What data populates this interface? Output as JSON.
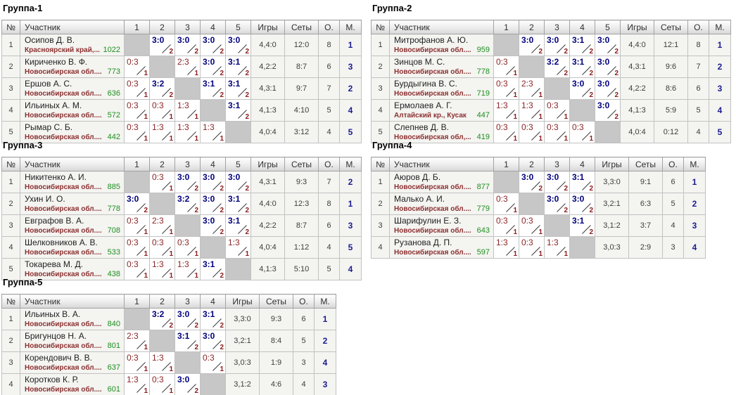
{
  "headers": {
    "num": "№",
    "participant": "Участник",
    "games": "Игры",
    "sets": "Сеты",
    "points": "О.",
    "place": "М."
  },
  "colors": {
    "win_score": "#00007d",
    "loss_score": "#8b2525",
    "bonus_points": "#8b1a1a",
    "rating": "#1f8f1f",
    "region": "#8b3030",
    "place": "#1c1c91",
    "diagonal_cell": "#c7c7c7",
    "row_cell_bg": "#f4f4f1"
  },
  "groups": [
    {
      "title": "Группа-1",
      "opponents": [
        "1",
        "2",
        "3",
        "4",
        "5"
      ],
      "players": [
        {
          "num": "1",
          "name": "Осипов Д. В.",
          "region": "Красноярский край,...",
          "rating": "1022",
          "results": [
            {
              "type": "self"
            },
            {
              "type": "win",
              "score": "3:0",
              "pts": "2"
            },
            {
              "type": "win",
              "score": "3:0",
              "pts": "2"
            },
            {
              "type": "win",
              "score": "3:0",
              "pts": "2"
            },
            {
              "type": "win",
              "score": "3:0",
              "pts": "2"
            }
          ],
          "games": "4,4:0",
          "sets": "12:0",
          "points": "8",
          "place": "1"
        },
        {
          "num": "2",
          "name": "Кириченко В. Ф.",
          "region": "Новосибирская обл....",
          "rating": "773",
          "results": [
            {
              "type": "loss",
              "score": "0:3",
              "pts": "1"
            },
            {
              "type": "self"
            },
            {
              "type": "loss",
              "score": "2:3",
              "pts": "1"
            },
            {
              "type": "win",
              "score": "3:0",
              "pts": "2"
            },
            {
              "type": "win",
              "score": "3:1",
              "pts": "2"
            }
          ],
          "games": "4,2:2",
          "sets": "8:7",
          "points": "6",
          "place": "3"
        },
        {
          "num": "3",
          "name": "Ершов А. С.",
          "region": "Новосибирская обл....",
          "rating": "636",
          "results": [
            {
              "type": "loss",
              "score": "0:3",
              "pts": "1"
            },
            {
              "type": "win",
              "score": "3:2",
              "pts": "2"
            },
            {
              "type": "self"
            },
            {
              "type": "win",
              "score": "3:1",
              "pts": "2"
            },
            {
              "type": "win",
              "score": "3:1",
              "pts": "2"
            }
          ],
          "games": "4,3:1",
          "sets": "9:7",
          "points": "7",
          "place": "2"
        },
        {
          "num": "4",
          "name": "Ильиных А. М.",
          "region": "Новосибирская обл....",
          "rating": "572",
          "results": [
            {
              "type": "loss",
              "score": "0:3",
              "pts": "1"
            },
            {
              "type": "loss",
              "score": "0:3",
              "pts": "1"
            },
            {
              "type": "loss",
              "score": "1:3",
              "pts": "1"
            },
            {
              "type": "self"
            },
            {
              "type": "win",
              "score": "3:1",
              "pts": "2"
            }
          ],
          "games": "4,1:3",
          "sets": "4:10",
          "points": "5",
          "place": "4"
        },
        {
          "num": "5",
          "name": "Рымар С. Б.",
          "region": "Новосибирская обл....",
          "rating": "442",
          "results": [
            {
              "type": "loss",
              "score": "0:3",
              "pts": "1"
            },
            {
              "type": "loss",
              "score": "1:3",
              "pts": "1"
            },
            {
              "type": "loss",
              "score": "1:3",
              "pts": "1"
            },
            {
              "type": "loss",
              "score": "1:3",
              "pts": "1"
            },
            {
              "type": "self"
            }
          ],
          "games": "4,0:4",
          "sets": "3:12",
          "points": "4",
          "place": "5"
        }
      ]
    },
    {
      "title": "Группа-2",
      "opponents": [
        "1",
        "2",
        "3",
        "4",
        "5"
      ],
      "players": [
        {
          "num": "1",
          "name": "Митрофанов А. Ю.",
          "region": "Новосибирская обл....",
          "rating": "959",
          "results": [
            {
              "type": "self"
            },
            {
              "type": "win",
              "score": "3:0",
              "pts": "2"
            },
            {
              "type": "win",
              "score": "3:0",
              "pts": "2"
            },
            {
              "type": "win",
              "score": "3:1",
              "pts": "2"
            },
            {
              "type": "win",
              "score": "3:0",
              "pts": "2"
            }
          ],
          "games": "4,4:0",
          "sets": "12:1",
          "points": "8",
          "place": "1"
        },
        {
          "num": "2",
          "name": "Зинцов М. С.",
          "region": "Новосибирская обл....",
          "rating": "778",
          "results": [
            {
              "type": "loss",
              "score": "0:3",
              "pts": "1"
            },
            {
              "type": "self"
            },
            {
              "type": "win",
              "score": "3:2",
              "pts": "2"
            },
            {
              "type": "win",
              "score": "3:1",
              "pts": "2"
            },
            {
              "type": "win",
              "score": "3:0",
              "pts": "2"
            }
          ],
          "games": "4,3:1",
          "sets": "9:6",
          "points": "7",
          "place": "2"
        },
        {
          "num": "3",
          "name": "Бурдыгина В. С.",
          "region": "Новосибирская обл....",
          "rating": "719",
          "results": [
            {
              "type": "loss",
              "score": "0:3",
              "pts": "1"
            },
            {
              "type": "loss",
              "score": "2:3",
              "pts": "1"
            },
            {
              "type": "self"
            },
            {
              "type": "win",
              "score": "3:0",
              "pts": "2"
            },
            {
              "type": "win",
              "score": "3:0",
              "pts": "2"
            }
          ],
          "games": "4,2:2",
          "sets": "8:6",
          "points": "6",
          "place": "3"
        },
        {
          "num": "4",
          "name": "Ермолаев А. Г.",
          "region": "Алтайский кр., Кусак",
          "rating": "447",
          "results": [
            {
              "type": "loss",
              "score": "1:3",
              "pts": "1"
            },
            {
              "type": "loss",
              "score": "1:3",
              "pts": "1"
            },
            {
              "type": "loss",
              "score": "0:3",
              "pts": "1"
            },
            {
              "type": "self"
            },
            {
              "type": "win",
              "score": "3:0",
              "pts": "2"
            }
          ],
          "games": "4,1:3",
          "sets": "5:9",
          "points": "5",
          "place": "4"
        },
        {
          "num": "5",
          "name": "Слепнев Д. В.",
          "region": "Новосибирская обл,...",
          "rating": "419",
          "results": [
            {
              "type": "loss",
              "score": "0:3",
              "pts": "1"
            },
            {
              "type": "loss",
              "score": "0:3",
              "pts": "1"
            },
            {
              "type": "loss",
              "score": "0:3",
              "pts": "1"
            },
            {
              "type": "loss",
              "score": "0:3",
              "pts": "1"
            },
            {
              "type": "self"
            }
          ],
          "games": "4,0:4",
          "sets": "0:12",
          "points": "4",
          "place": "5"
        }
      ]
    },
    {
      "title": "Группа-3",
      "opponents": [
        "1",
        "2",
        "3",
        "4",
        "5"
      ],
      "players": [
        {
          "num": "1",
          "name": "Никитенко А. И.",
          "region": "Новосибирская обл....",
          "rating": "885",
          "results": [
            {
              "type": "self"
            },
            {
              "type": "loss",
              "score": "0:3",
              "pts": "1"
            },
            {
              "type": "win",
              "score": "3:0",
              "pts": "2"
            },
            {
              "type": "win",
              "score": "3:0",
              "pts": "2"
            },
            {
              "type": "win",
              "score": "3:0",
              "pts": "2"
            }
          ],
          "games": "4,3:1",
          "sets": "9:3",
          "points": "7",
          "place": "2"
        },
        {
          "num": "2",
          "name": "Ухин И. О.",
          "region": "Новосибирская обл....",
          "rating": "778",
          "results": [
            {
              "type": "win",
              "score": "3:0",
              "pts": "2"
            },
            {
              "type": "self"
            },
            {
              "type": "win",
              "score": "3:2",
              "pts": "2"
            },
            {
              "type": "win",
              "score": "3:0",
              "pts": "2"
            },
            {
              "type": "win",
              "score": "3:1",
              "pts": "2"
            }
          ],
          "games": "4,4:0",
          "sets": "12:3",
          "points": "8",
          "place": "1"
        },
        {
          "num": "3",
          "name": "Евграфов В. А.",
          "region": "Новосибирская обл....",
          "rating": "708",
          "results": [
            {
              "type": "loss",
              "score": "0:3",
              "pts": "1"
            },
            {
              "type": "loss",
              "score": "2:3",
              "pts": "1"
            },
            {
              "type": "self"
            },
            {
              "type": "win",
              "score": "3:0",
              "pts": "2"
            },
            {
              "type": "win",
              "score": "3:1",
              "pts": "2"
            }
          ],
          "games": "4,2:2",
          "sets": "8:7",
          "points": "6",
          "place": "3"
        },
        {
          "num": "4",
          "name": "Шелковников А. В.",
          "region": "Новосибирская обл....",
          "rating": "533",
          "results": [
            {
              "type": "loss",
              "score": "0:3",
              "pts": "1"
            },
            {
              "type": "loss",
              "score": "0:3",
              "pts": "1"
            },
            {
              "type": "loss",
              "score": "0:3",
              "pts": "1"
            },
            {
              "type": "self"
            },
            {
              "type": "loss",
              "score": "1:3",
              "pts": "1"
            }
          ],
          "games": "4,0:4",
          "sets": "1:12",
          "points": "4",
          "place": "5"
        },
        {
          "num": "5",
          "name": "Токарева М. Д.",
          "region": "Новосибирская обл....",
          "rating": "438",
          "results": [
            {
              "type": "loss",
              "score": "0:3",
              "pts": "1"
            },
            {
              "type": "loss",
              "score": "1:3",
              "pts": "1"
            },
            {
              "type": "loss",
              "score": "1:3",
              "pts": "1"
            },
            {
              "type": "win",
              "score": "3:1",
              "pts": "2"
            },
            {
              "type": "self"
            }
          ],
          "games": "4,1:3",
          "sets": "5:10",
          "points": "5",
          "place": "4"
        }
      ]
    },
    {
      "title": "Группа-4",
      "opponents": [
        "1",
        "2",
        "3",
        "4"
      ],
      "players": [
        {
          "num": "1",
          "name": "Аюров Д. Б.",
          "region": "Новосибирская обл....",
          "rating": "877",
          "results": [
            {
              "type": "self"
            },
            {
              "type": "win",
              "score": "3:0",
              "pts": "2"
            },
            {
              "type": "win",
              "score": "3:0",
              "pts": "2"
            },
            {
              "type": "win",
              "score": "3:1",
              "pts": "2"
            }
          ],
          "games": "3,3:0",
          "sets": "9:1",
          "points": "6",
          "place": "1"
        },
        {
          "num": "2",
          "name": "Малько А. И.",
          "region": "Новосибирская обл....",
          "rating": "779",
          "results": [
            {
              "type": "loss",
              "score": "0:3",
              "pts": "1"
            },
            {
              "type": "self"
            },
            {
              "type": "win",
              "score": "3:0",
              "pts": "2"
            },
            {
              "type": "win",
              "score": "3:0",
              "pts": "2"
            }
          ],
          "games": "3,2:1",
          "sets": "6:3",
          "points": "5",
          "place": "2"
        },
        {
          "num": "3",
          "name": "Шарифулин Е. З.",
          "region": "Новосибирская обл....",
          "rating": "643",
          "results": [
            {
              "type": "loss",
              "score": "0:3",
              "pts": "1"
            },
            {
              "type": "loss",
              "score": "0:3",
              "pts": "1"
            },
            {
              "type": "self"
            },
            {
              "type": "win",
              "score": "3:1",
              "pts": "2"
            }
          ],
          "games": "3,1:2",
          "sets": "3:7",
          "points": "4",
          "place": "3"
        },
        {
          "num": "4",
          "name": "Рузанова Д. П.",
          "region": "Новосибирская обл....",
          "rating": "597",
          "results": [
            {
              "type": "loss",
              "score": "1:3",
              "pts": "1"
            },
            {
              "type": "loss",
              "score": "0:3",
              "pts": "1"
            },
            {
              "type": "loss",
              "score": "1:3",
              "pts": "1"
            },
            {
              "type": "self"
            }
          ],
          "games": "3,0:3",
          "sets": "2:9",
          "points": "3",
          "place": "4"
        }
      ]
    },
    {
      "title": "Группа-5",
      "opponents": [
        "1",
        "2",
        "3",
        "4"
      ],
      "players": [
        {
          "num": "1",
          "name": "Ильиных В. А.",
          "region": "Новосибирская обл....",
          "rating": "840",
          "results": [
            {
              "type": "self"
            },
            {
              "type": "win",
              "score": "3:2",
              "pts": "2"
            },
            {
              "type": "win",
              "score": "3:0",
              "pts": "2"
            },
            {
              "type": "win",
              "score": "3:1",
              "pts": "2"
            }
          ],
          "games": "3,3:0",
          "sets": "9:3",
          "points": "6",
          "place": "1"
        },
        {
          "num": "2",
          "name": "Бригунцов Н. А.",
          "region": "Новосибирская обл....",
          "rating": "801",
          "results": [
            {
              "type": "loss",
              "score": "2:3",
              "pts": "1"
            },
            {
              "type": "self"
            },
            {
              "type": "win",
              "score": "3:1",
              "pts": "2"
            },
            {
              "type": "win",
              "score": "3:0",
              "pts": "2"
            }
          ],
          "games": "3,2:1",
          "sets": "8:4",
          "points": "5",
          "place": "2"
        },
        {
          "num": "3",
          "name": "Корендович В. В.",
          "region": "Новосибирская обл....",
          "rating": "637",
          "results": [
            {
              "type": "loss",
              "score": "0:3",
              "pts": "1"
            },
            {
              "type": "loss",
              "score": "1:3",
              "pts": "1"
            },
            {
              "type": "self"
            },
            {
              "type": "loss",
              "score": "0:3",
              "pts": "1"
            }
          ],
          "games": "3,0:3",
          "sets": "1:9",
          "points": "3",
          "place": "4"
        },
        {
          "num": "4",
          "name": "Коротков К. Р.",
          "region": "Новосибирская обл....",
          "rating": "601",
          "results": [
            {
              "type": "loss",
              "score": "1:3",
              "pts": "1"
            },
            {
              "type": "loss",
              "score": "0:3",
              "pts": "1"
            },
            {
              "type": "win",
              "score": "3:0",
              "pts": "2"
            },
            {
              "type": "self"
            }
          ],
          "games": "3,1:2",
          "sets": "4:6",
          "points": "4",
          "place": "3"
        }
      ]
    }
  ]
}
